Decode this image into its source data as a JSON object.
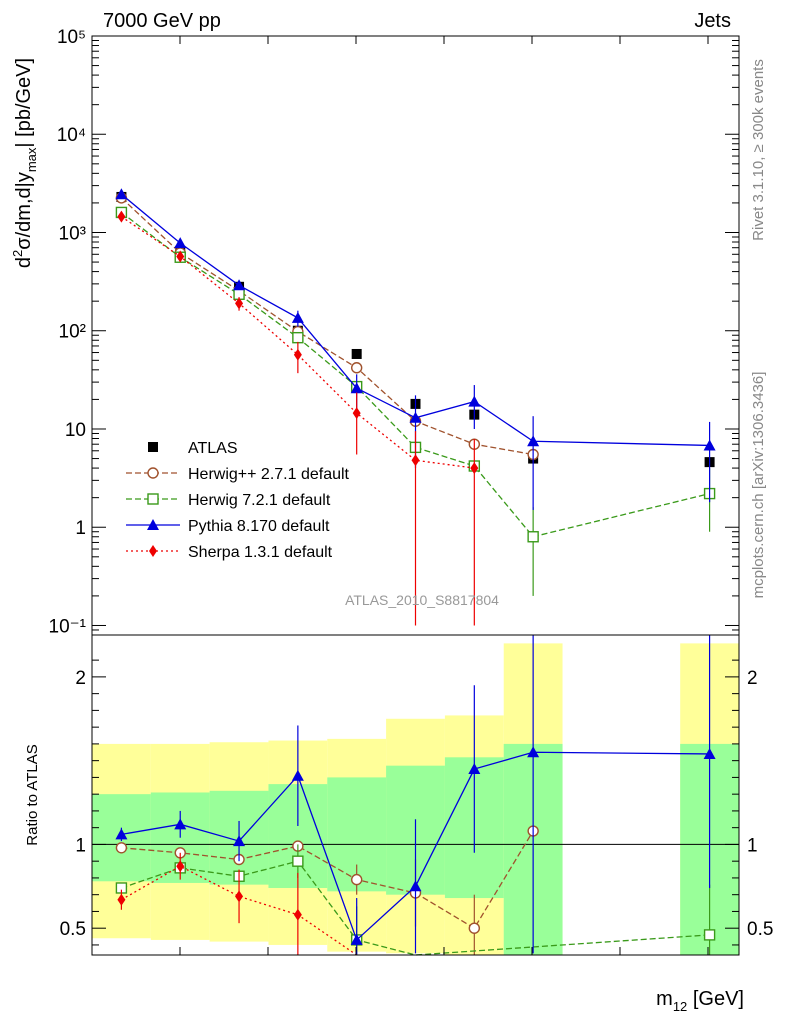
{
  "header": {
    "left": "7000 GeV pp",
    "right": "Jets",
    "analysis": "ATLAS_2010_S8817804",
    "side_top": "Rivet 3.1.10, ≥ 300k events",
    "side_bottom": "mcplots.cern.ch [arXiv:1306.3436]"
  },
  "chart_data": [
    {
      "type": "scatter",
      "panel": "main",
      "ylabel": "d²σ/dm,d|y_max| [pb/GeV]",
      "yscale": "log",
      "ylim": [
        0.08,
        100000
      ],
      "y_ticks": [
        "10⁻¹",
        "1",
        "10",
        "10²",
        "10³",
        "10⁴",
        "10⁵"
      ],
      "x_bins": 11,
      "legend_position": "lower-left",
      "series": [
        {
          "name": "ATLAS",
          "color": "#000000",
          "marker": "filled-square",
          "bins": [
            0,
            1,
            2,
            3,
            4,
            5,
            6,
            7,
            8,
            9,
            10
          ],
          "values": [
            2300,
            650,
            280,
            100,
            58,
            18,
            14,
            5,
            null,
            null,
            4.6
          ]
        },
        {
          "name": "Herwig++ 2.7.1 default",
          "color": "#a0522d",
          "marker": "open-circle",
          "dash": "6,3",
          "bins": [
            0,
            1,
            2,
            3,
            4,
            5,
            6,
            7
          ],
          "values": [
            2250,
            620,
            255,
            98,
            42,
            12,
            7,
            5.5
          ]
        },
        {
          "name": "Herwig 7.2.1 default",
          "color": "#3a9a1a",
          "marker": "open-square",
          "dash": "6,3",
          "bins": [
            0,
            1,
            2,
            3,
            4,
            5,
            6,
            7,
            8,
            9,
            10
          ],
          "values": [
            1600,
            560,
            235,
            85,
            27,
            6.5,
            4.2,
            0.8,
            null,
            null,
            2.2
          ],
          "errors": [
            [
              0,
              0
            ],
            [
              0,
              0
            ],
            [
              0,
              0
            ],
            [
              0,
              0
            ],
            [
              0,
              0
            ],
            [
              0,
              0
            ],
            [
              0,
              0
            ],
            [
              0.6,
              0.8
            ],
            [
              0,
              0
            ],
            [
              0,
              0
            ],
            [
              1.3,
              1.8
            ]
          ]
        },
        {
          "name": "Pythia 8.170 default",
          "color": "#0000dd",
          "marker": "triangle",
          "bins": [
            0,
            1,
            2,
            3,
            4,
            5,
            6,
            7,
            10
          ],
          "values": [
            2450,
            780,
            290,
            135,
            26,
            13,
            19,
            7.5,
            6.8
          ],
          "errors": [
            [
              0,
              0
            ],
            [
              0,
              0
            ],
            [
              0,
              0
            ],
            [
              25,
              25
            ],
            [
              10,
              10
            ],
            [
              9,
              9
            ],
            [
              9,
              9
            ],
            [
              6,
              6
            ],
            [
              5,
              5
            ]
          ]
        },
        {
          "name": "Sherpa 1.3.1 default",
          "color": "#ee0000",
          "marker": "diamond",
          "dash": "2,3",
          "bins": [
            0,
            1,
            2,
            3,
            4,
            5,
            6
          ],
          "values": [
            1450,
            570,
            190,
            57,
            14.5,
            4.8,
            4.0
          ],
          "errors": [
            [
              150,
              150
            ],
            [
              60,
              60
            ],
            [
              30,
              30
            ],
            [
              20,
              20
            ],
            [
              9,
              9
            ],
            [
              4.7,
              4.7
            ],
            [
              3.9,
              3.9
            ]
          ]
        }
      ]
    },
    {
      "type": "scatter",
      "panel": "ratio",
      "ylabel": "Ratio to ATLAS",
      "ylim": [
        0.34,
        2.25
      ],
      "y_ticks": [
        "0.5",
        "1",
        "2"
      ],
      "xlabel": "m₁₂ [GeV]",
      "bands": {
        "bins": [
          0,
          1,
          2,
          3,
          4,
          5,
          6,
          7,
          8,
          9,
          10
        ],
        "yellow": [
          [
            0.44,
            1.6
          ],
          [
            0.43,
            1.6
          ],
          [
            0.42,
            1.61
          ],
          [
            0.4,
            1.62
          ],
          [
            0.36,
            1.63
          ],
          [
            0.35,
            1.75
          ],
          [
            0.34,
            1.77
          ],
          [
            0.3,
            2.2
          ],
          null,
          null,
          [
            0.3,
            2.2
          ]
        ],
        "green": [
          [
            0.78,
            1.3
          ],
          [
            0.77,
            1.31
          ],
          [
            0.76,
            1.32
          ],
          [
            0.74,
            1.36
          ],
          [
            0.72,
            1.4
          ],
          [
            0.7,
            1.47
          ],
          [
            0.68,
            1.52
          ],
          [
            0.3,
            1.6
          ],
          null,
          null,
          [
            0.3,
            1.6
          ]
        ]
      },
      "series": [
        {
          "name": "Herwig++ 2.7.1 default",
          "color": "#a0522d",
          "marker": "open-circle",
          "dash": "6,3",
          "bins": [
            0,
            1,
            2,
            3,
            4,
            5,
            6,
            7
          ],
          "values": [
            0.98,
            0.95,
            0.91,
            0.99,
            0.79,
            0.71,
            0.5,
            1.08
          ],
          "errors": [
            [
              0,
              0
            ],
            [
              0,
              0
            ],
            [
              0,
              0
            ],
            [
              0,
              0
            ],
            [
              0.09,
              0.09
            ],
            [
              0.2,
              0.2
            ],
            [
              0.2,
              0.2
            ],
            [
              0,
              0
            ]
          ]
        },
        {
          "name": "Herwig 7.2.1 default",
          "color": "#3a9a1a",
          "marker": "open-square",
          "dash": "6,3",
          "bins": [
            0,
            1,
            2,
            3,
            4,
            5,
            10
          ],
          "values": [
            0.74,
            0.86,
            0.81,
            0.9,
            0.43,
            0.3,
            0.46
          ],
          "errors": [
            [
              0,
              0
            ],
            [
              0,
              0
            ],
            [
              0,
              0
            ],
            [
              0.1,
              0.1
            ],
            [
              0.2,
              0.2
            ],
            [
              0,
              0
            ],
            [
              0.3,
              0.3
            ]
          ]
        },
        {
          "name": "Pythia 8.170 default",
          "color": "#0000dd",
          "marker": "triangle",
          "bins": [
            0,
            1,
            2,
            3,
            4,
            5,
            6,
            7,
            10
          ],
          "values": [
            1.06,
            1.12,
            1.02,
            1.41,
            0.43,
            0.75,
            1.45,
            1.55,
            1.54
          ],
          "errors": [
            [
              0.04,
              0.04
            ],
            [
              0.08,
              0.08
            ],
            [
              0.12,
              0.12
            ],
            [
              0.3,
              0.3
            ],
            [
              0.25,
              0.25
            ],
            [
              0.4,
              0.4
            ],
            [
              0.5,
              0.5
            ],
            [
              1.2,
              1.2
            ],
            [
              0.8,
              0.8
            ]
          ]
        },
        {
          "name": "Sherpa 1.3.1 default",
          "color": "#ee0000",
          "marker": "diamond",
          "dash": "2,3",
          "bins": [
            0,
            1,
            2,
            3,
            4
          ],
          "values": [
            0.67,
            0.87,
            0.69,
            0.58,
            0.25
          ],
          "errors": [
            [
              0.06,
              0.06
            ],
            [
              0.08,
              0.08
            ],
            [
              0.16,
              0.16
            ],
            [
              0.25,
              0.25
            ],
            [
              0,
              0
            ]
          ]
        }
      ]
    }
  ]
}
